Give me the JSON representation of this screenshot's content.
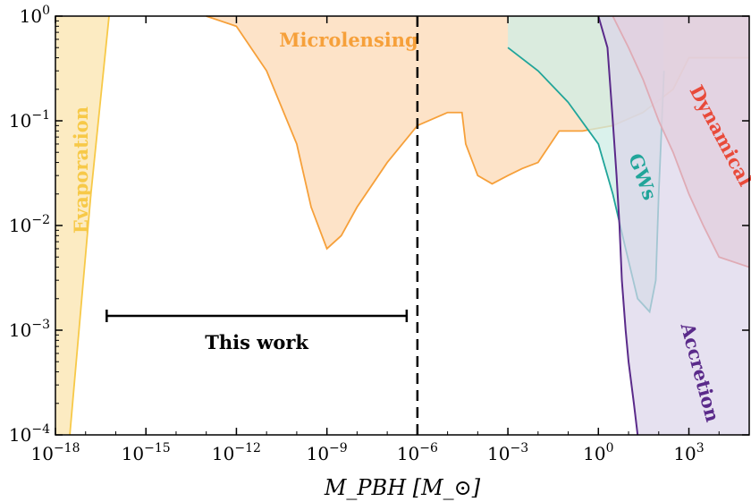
{
  "chart_data": {
    "type": "area",
    "xlabel": "M_PBH [M_⊙]",
    "ylabel": "",
    "x_scale": "log",
    "y_scale": "log",
    "xlim": [
      1e-18,
      100000.0
    ],
    "ylim": [
      0.0001,
      1
    ],
    "x_ticks": [
      {
        "value": 1e-18,
        "base": "10",
        "exp": "−18"
      },
      {
        "value": 1e-15,
        "base": "10",
        "exp": "−15"
      },
      {
        "value": 1e-12,
        "base": "10",
        "exp": "−12"
      },
      {
        "value": 1e-09,
        "base": "10",
        "exp": "−9"
      },
      {
        "value": 1e-06,
        "base": "10",
        "exp": "−6"
      },
      {
        "value": 0.001,
        "base": "10",
        "exp": "−3"
      },
      {
        "value": 1,
        "base": "10",
        "exp": "0"
      },
      {
        "value": 1000.0,
        "base": "10",
        "exp": "3"
      }
    ],
    "y_ticks": [
      {
        "value": 1,
        "base": "10",
        "exp": "0"
      },
      {
        "value": 0.1,
        "base": "10",
        "exp": "−1"
      },
      {
        "value": 0.01,
        "base": "10",
        "exp": "−2"
      },
      {
        "value": 0.001,
        "base": "10",
        "exp": "−3"
      },
      {
        "value": 0.0001,
        "base": "10",
        "exp": "−4"
      }
    ],
    "series": [
      {
        "name": "Evaporation",
        "fill": "#fcebc2",
        "stroke": "#f7c948",
        "x": [
          3e-18,
          1.5e-17,
          6e-17,
          1e-18
        ],
        "y": [
          0.0001,
          0.02,
          1,
          1
        ],
        "closed_top_left": true
      },
      {
        "name": "Microlensing",
        "fill": "#fde3c8",
        "stroke": "#f6a03a",
        "x": [
          1e-13,
          1e-12,
          1e-11,
          1e-10,
          3e-10,
          1e-09,
          3e-09,
          1e-08,
          1e-07,
          1e-06,
          1e-05,
          3e-05,
          4e-05,
          0.0001,
          0.0003,
          0.001,
          0.003,
          0.01,
          0.05,
          0.3,
          3,
          30,
          300,
          1000,
          3000,
          100000.0
        ],
        "y": [
          1,
          0.8,
          0.3,
          0.06,
          0.015,
          0.006,
          0.008,
          0.015,
          0.04,
          0.09,
          0.12,
          0.12,
          0.06,
          0.03,
          0.025,
          0.03,
          0.035,
          0.04,
          0.08,
          0.08,
          0.09,
          0.12,
          0.2,
          0.4,
          0.4,
          0.4
        ]
      },
      {
        "name": "GWs",
        "fill": "#cdeee6",
        "stroke": "#21a59a",
        "x": [
          0.001,
          0.01,
          0.1,
          1,
          3,
          8,
          20,
          50,
          80,
          100,
          150
        ],
        "y": [
          0.5,
          0.3,
          0.15,
          0.06,
          0.02,
          0.006,
          0.002,
          0.0015,
          0.003,
          0.02,
          0.3
        ]
      },
      {
        "name": "Dynamical",
        "fill": "#f3c5c5",
        "stroke": "#e84a3a",
        "x": [
          3,
          10,
          30,
          100,
          300,
          1000,
          3000,
          10000.0,
          100000.0
        ],
        "y": [
          1,
          0.5,
          0.25,
          0.1,
          0.05,
          0.02,
          0.01,
          0.005,
          0.004
        ]
      },
      {
        "name": "Accretion",
        "fill": "#dcd4ea",
        "stroke": "#5a2a8a",
        "x": [
          1,
          2,
          3,
          4,
          5,
          6,
          8,
          10,
          15,
          20
        ],
        "y": [
          1,
          0.5,
          0.1,
          0.03,
          0.01,
          0.003,
          0.001,
          0.0005,
          0.0002,
          0.0001
        ]
      }
    ],
    "annotations": [
      {
        "text": "Microlensing",
        "color": "#f6a03a"
      },
      {
        "text": "Evaporation",
        "color": "#f7c948"
      },
      {
        "text": "GWs",
        "color": "#21a59a"
      },
      {
        "text": "Dynamical",
        "color": "#e84a3a"
      },
      {
        "text": "Accretion",
        "color": "#5a2a8a"
      },
      {
        "text": "This work",
        "color": "#000000",
        "x_range": [
          5e-17,
          1e-06
        ]
      }
    ],
    "vertical_line": {
      "x": 1e-06,
      "style": "dashed"
    },
    "grid": false,
    "top_band_color": "#d9d9d9"
  }
}
